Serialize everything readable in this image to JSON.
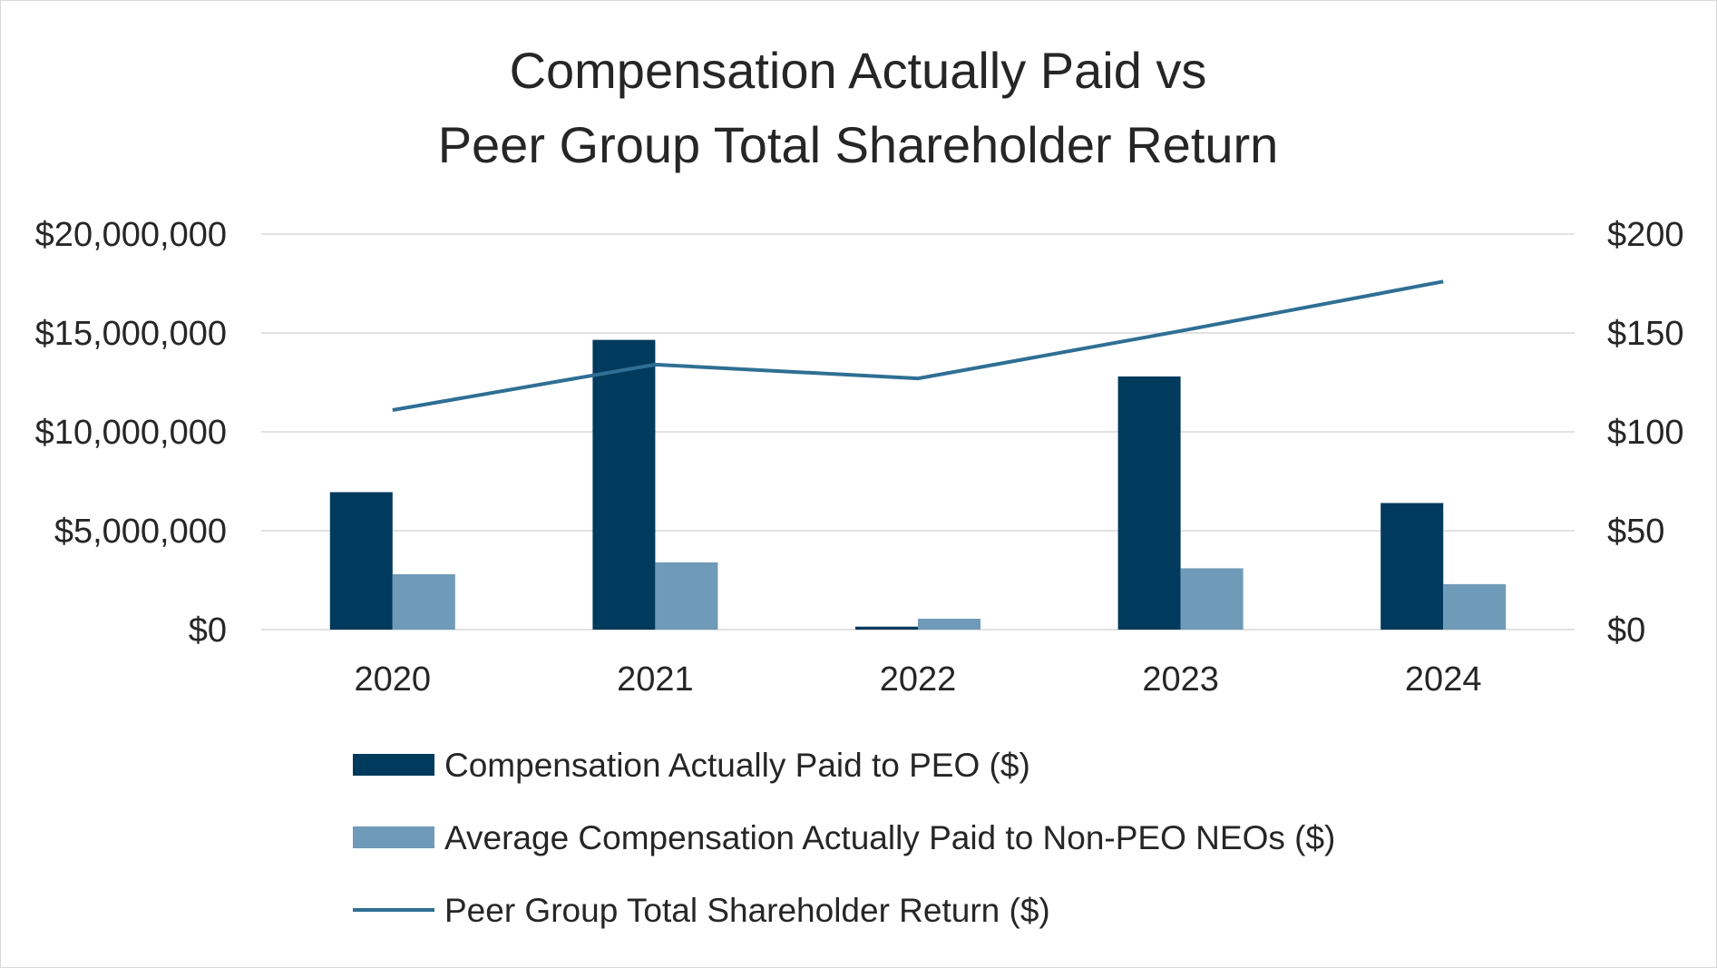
{
  "chart_data": {
    "type": "bar",
    "title": [
      "Compensation Actually Paid vs",
      "Peer Group Total Shareholder Return"
    ],
    "categories": [
      "2020",
      "2021",
      "2022",
      "2023",
      "2024"
    ],
    "y_left": {
      "ylim": [
        0,
        20000000
      ],
      "ticks": [
        0,
        5000000,
        10000000,
        15000000,
        20000000
      ],
      "tick_labels": [
        "$0",
        "$5,000,000",
        "$10,000,000",
        "$15,000,000",
        "$20,000,000"
      ]
    },
    "y_right": {
      "ylim": [
        0,
        200
      ],
      "ticks": [
        0,
        50,
        100,
        150,
        200
      ],
      "tick_labels": [
        "$0",
        "$50",
        "$100",
        "$150",
        "$200"
      ]
    },
    "series": [
      {
        "name": "Compensation Actually Paid to PEO ($)",
        "kind": "bar",
        "axis": "left",
        "color": "#003a5c",
        "values": [
          6950000,
          14650000,
          150000,
          12800000,
          6400000
        ]
      },
      {
        "name": "Average Compensation Actually Paid to Non-PEO NEOs ($)",
        "kind": "bar",
        "axis": "left",
        "color": "#6f9ab8",
        "values": [
          2800000,
          3400000,
          550000,
          3100000,
          2300000
        ]
      },
      {
        "name": "Peer Group Total Shareholder Return ($)",
        "kind": "line",
        "axis": "right",
        "color": "#2f6f94",
        "values": [
          111,
          134,
          127,
          151,
          176
        ]
      }
    ],
    "gridlines": true,
    "legend_position": "bottom"
  }
}
